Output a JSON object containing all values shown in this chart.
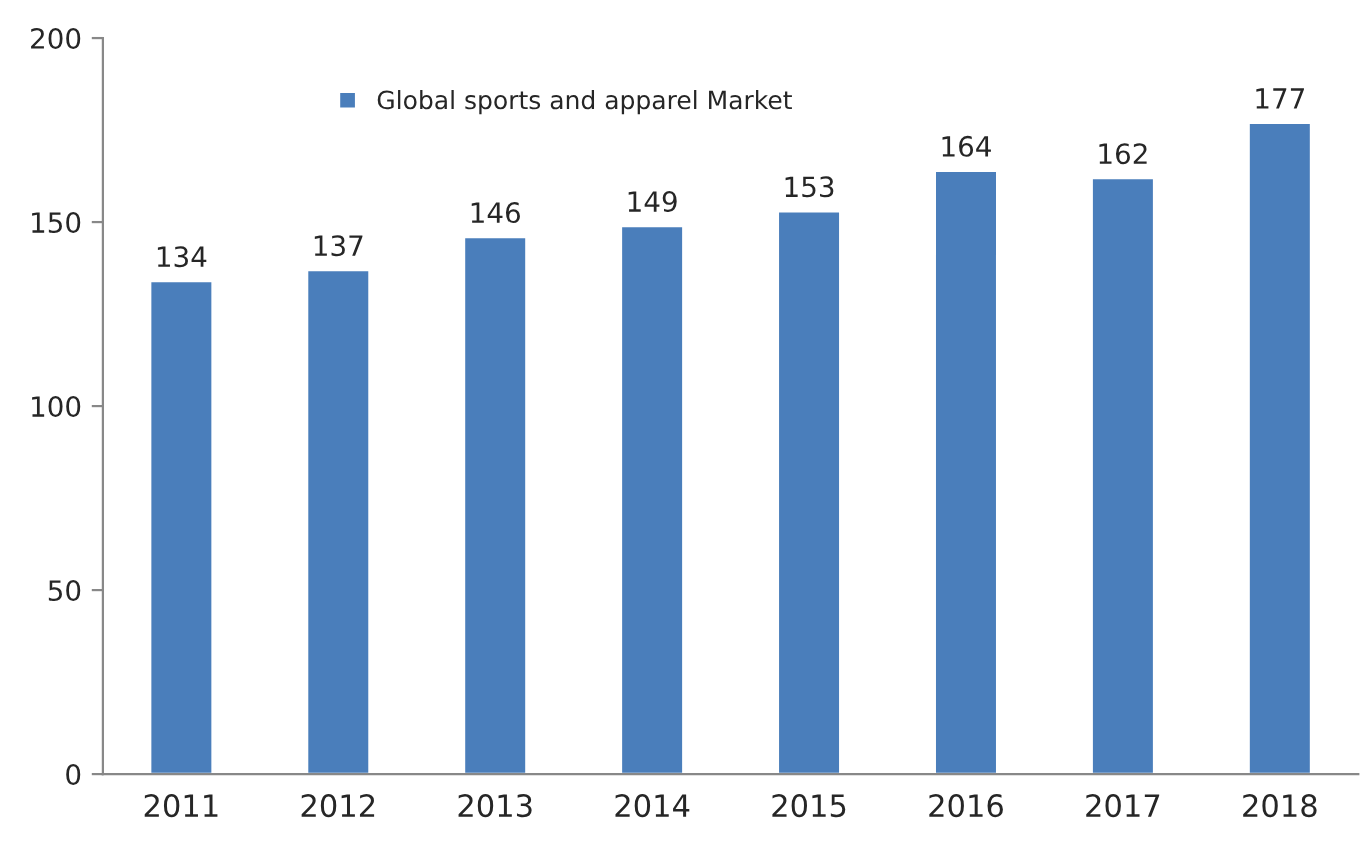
{
  "chart_data": {
    "type": "bar",
    "categories": [
      "2011",
      "2012",
      "2013",
      "2014",
      "2015",
      "2016",
      "2017",
      "2018"
    ],
    "series": [
      {
        "name": "Global sports and apparel Market",
        "color": "#4a7ebb",
        "values": [
          134,
          137,
          146,
          149,
          153,
          164,
          162,
          177
        ]
      }
    ],
    "ylim": [
      0,
      200
    ],
    "yticks": [
      0,
      50,
      100,
      150,
      200
    ],
    "grid": false,
    "legend": "top left",
    "data_labels": true
  }
}
